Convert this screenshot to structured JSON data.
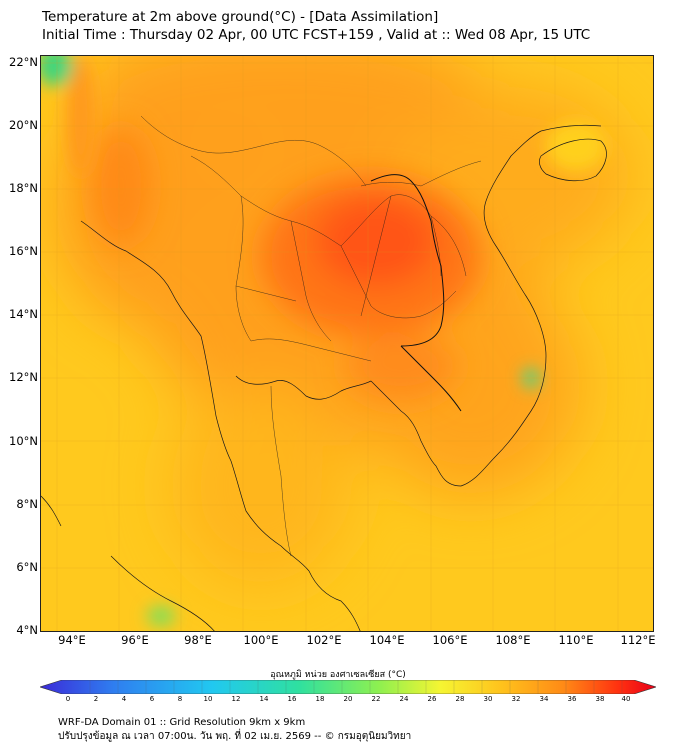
{
  "title": {
    "line1": "Temperature at 2m above ground(°C) - [Data Assimilation]",
    "line2": "Initial Time : Thursday 02 Apr, 00 UTC FCST+159 , Valid at :: Wed 08 Apr, 15 UTC"
  },
  "map": {
    "lat_labels": [
      "22°N",
      "20°N",
      "18°N",
      "16°N",
      "14°N",
      "12°N",
      "10°N",
      "8°N",
      "6°N",
      "4°N"
    ],
    "lon_labels": [
      "94°E",
      "96°E",
      "98°E",
      "100°E",
      "102°E",
      "104°E",
      "106°E",
      "108°E",
      "110°E",
      "112°E"
    ],
    "lat_range": [
      4,
      22.2
    ],
    "lon_range": [
      93,
      112.7
    ],
    "colors": {
      "hot_core": "#ff4a12",
      "warm": "#ff9a1c",
      "mild": "#ffc21c",
      "cool_sea": "#ffd21e",
      "cold_spot": "#31d67c",
      "border": "#1a1a1a"
    }
  },
  "colorbar": {
    "title": "อุณหภูมิ หน่วย องศาเซลเซียส (°C)",
    "ticks": [
      "0",
      "2",
      "4",
      "6",
      "8",
      "10",
      "12",
      "14",
      "16",
      "18",
      "20",
      "22",
      "24",
      "26",
      "28",
      "30",
      "32",
      "34",
      "36",
      "38",
      "40"
    ],
    "range": [
      0,
      40
    ],
    "colors": [
      "#3b2bd8",
      "#2f7ef0",
      "#21c8f0",
      "#2fe0a0",
      "#8ef050",
      "#f5f532",
      "#ffc21c",
      "#ff8a16",
      "#ff3010",
      "#e8001a"
    ]
  },
  "footer": {
    "line1": "WRF-DA Domain 01 :: Grid Resolution 9km x 9km",
    "line2": "ปรับปรุงข้อมูล ณ เวลา 07:00น. วัน พฤ. ที่ 02 เม.ย. 2569 -- © กรมอุตุนิยมวิทยา"
  }
}
